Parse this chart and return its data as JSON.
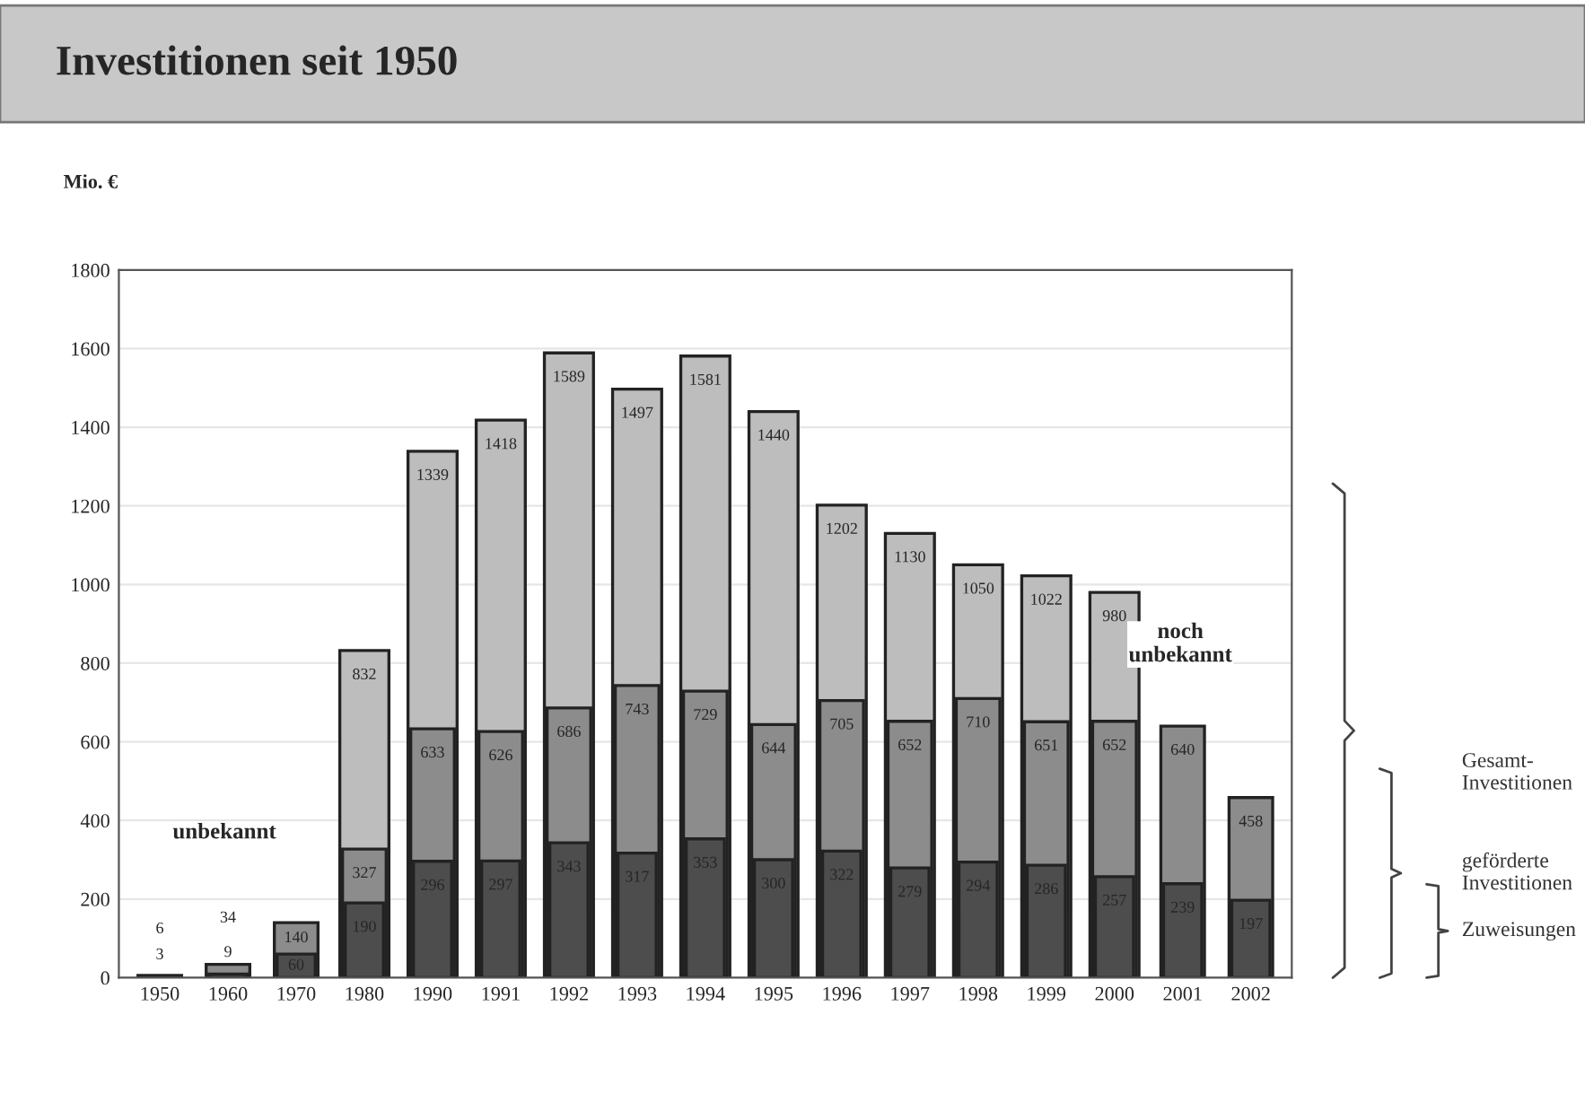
{
  "chart_data": {
    "type": "bar",
    "title": "Investitionen seit 1950",
    "ylabel": "Mio. €",
    "categories": [
      "1950",
      "1960",
      "1970",
      "1980",
      "1990",
      "1991",
      "1992",
      "1993",
      "1994",
      "1995",
      "1996",
      "1997",
      "1998",
      "1999",
      "2000",
      "2001",
      "2002"
    ],
    "series": [
      {
        "name": "Gesamt-Investitionen",
        "color": "#bdbdbd",
        "values": [
          null,
          null,
          null,
          832,
          1339,
          1418,
          1589,
          1497,
          1581,
          1440,
          1202,
          1130,
          1050,
          1022,
          980,
          null,
          null
        ]
      },
      {
        "name": "geförderte Investitionen",
        "color": "#8c8c8c",
        "values": [
          6,
          34,
          140,
          327,
          633,
          626,
          686,
          743,
          729,
          644,
          705,
          652,
          710,
          651,
          652,
          640,
          458
        ]
      },
      {
        "name": "Zuweisungen",
        "color": "#4d4d4d",
        "values": [
          3,
          9,
          60,
          190,
          296,
          297,
          343,
          317,
          353,
          300,
          322,
          279,
          294,
          286,
          257,
          239,
          197
        ]
      }
    ],
    "ylim": [
      0,
      1800
    ],
    "yticks": [
      0,
      200,
      400,
      600,
      800,
      1000,
      1200,
      1400,
      1600,
      1800
    ],
    "grid": "y",
    "legend": false,
    "data_labels": true,
    "annotations": [
      "unbekannt",
      "noch unbekannt"
    ]
  }
}
